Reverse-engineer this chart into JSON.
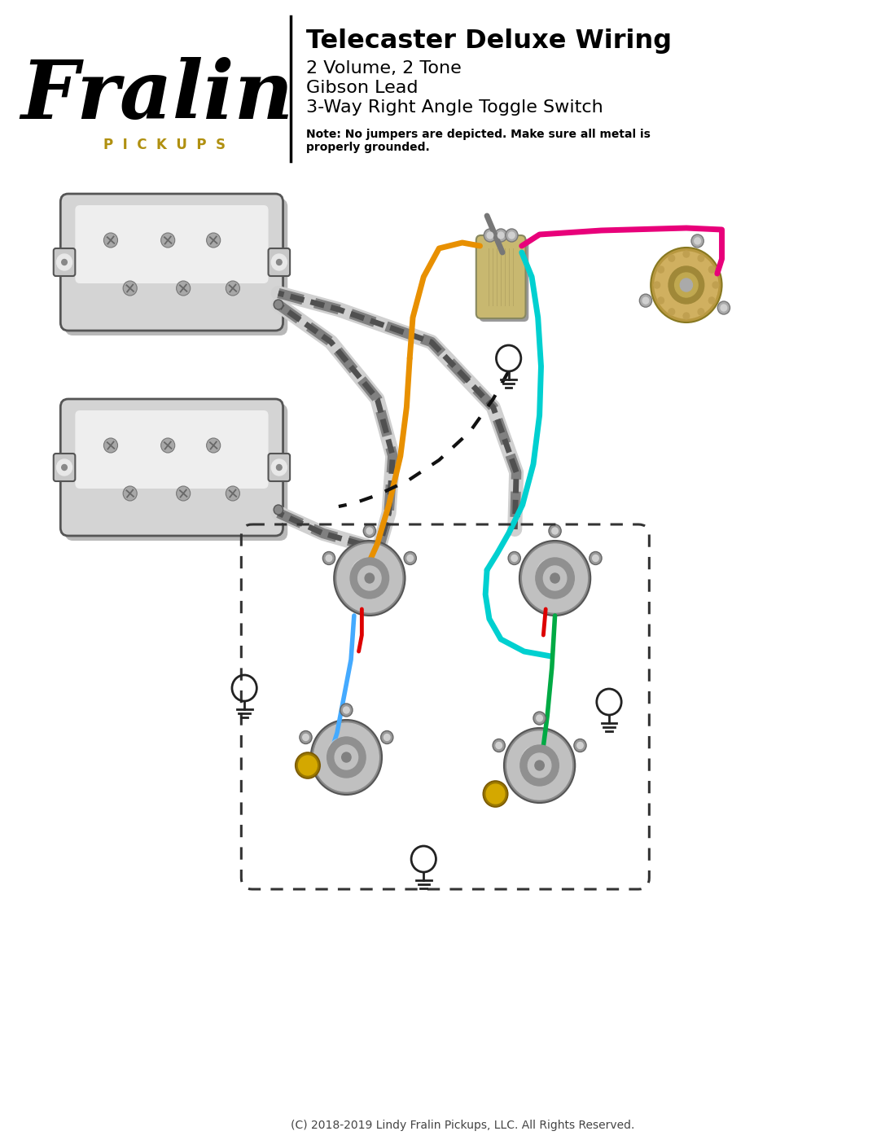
{
  "title": "Telecaster Deluxe Wiring",
  "subtitle_lines": [
    "2 Volume, 2 Tone",
    "Gibson Lead",
    "3-Way Right Angle Toggle Switch"
  ],
  "note": "Note: No jumpers are depicted. Make sure all metal is\nproperly grounded.",
  "copyright": "(C) 2018-2019 Lindy Fralin Pickups, LLC. All Rights Reserved.",
  "bg_color": "#ffffff",
  "wire_pink": "#e8007a",
  "wire_orange": "#e89000",
  "wire_cyan": "#00d0d0",
  "wire_teal": "#009090",
  "wire_blue": "#44aaff",
  "wire_red": "#dd0000",
  "wire_green": "#00aa44",
  "wire_black": "#111111",
  "wire_yellow": "#ccaa00",
  "pickup_body": "#e0e0e0",
  "pickup_edge": "#666666",
  "pot_outer": "#909090",
  "pot_inner": "#b8b8b8",
  "cap_color": "#ccaa00",
  "toggle_body": "#c8b870",
  "ground_color": "#222222",
  "dashed_color": "#333333",
  "pickups_gold": "#b09010",
  "footer_color": "#444444"
}
